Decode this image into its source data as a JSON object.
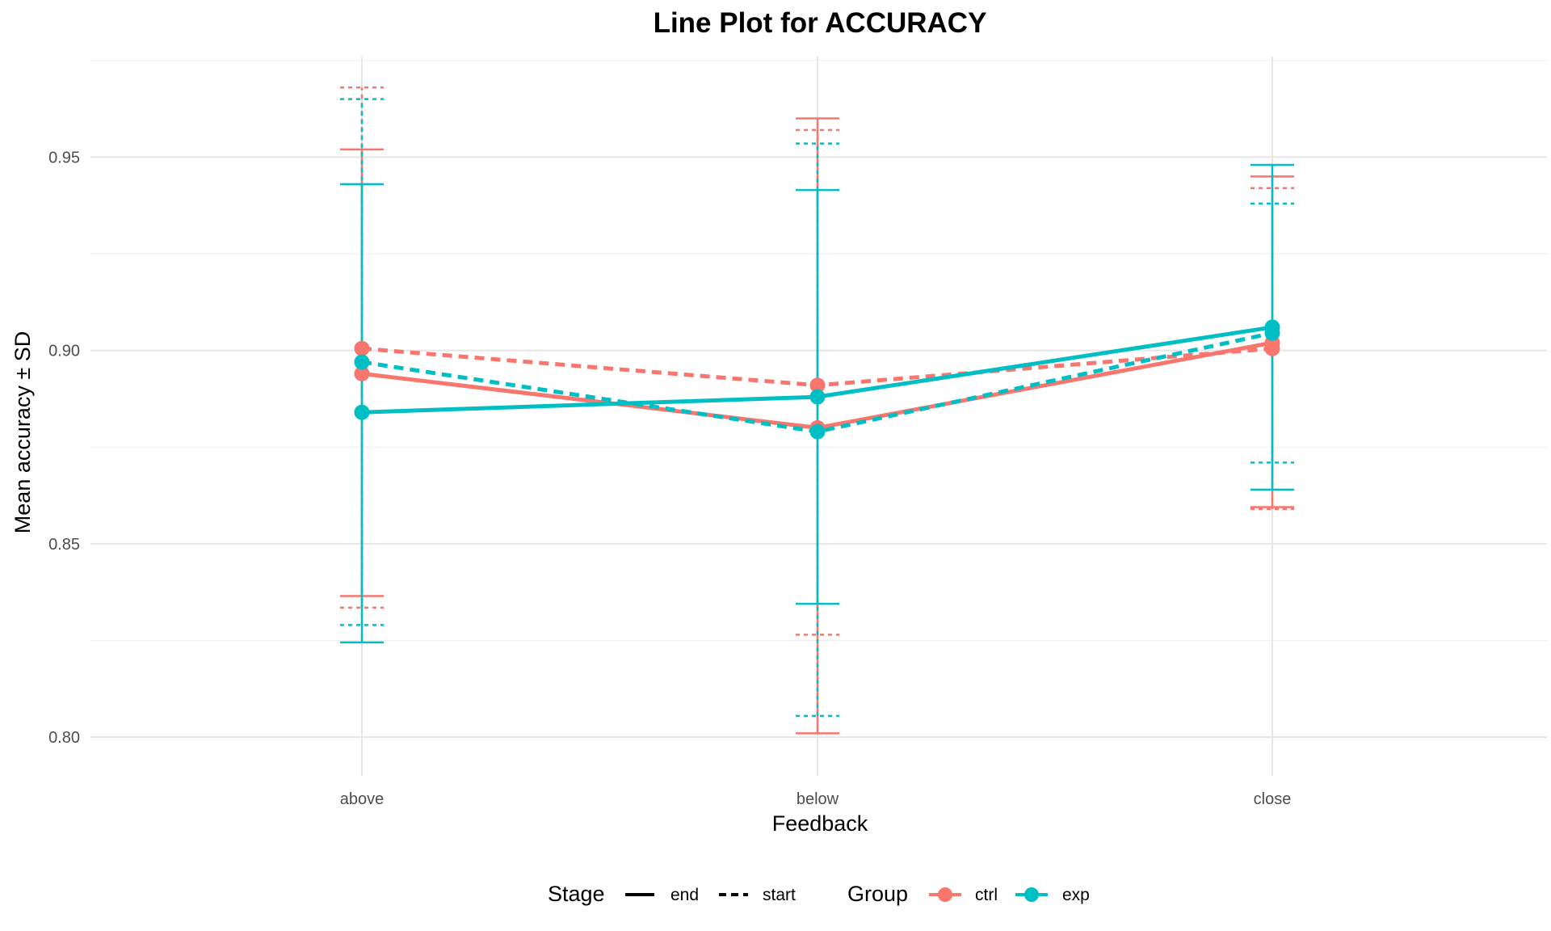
{
  "chart_data": {
    "type": "line",
    "title": "Line Plot for ACCURACY",
    "xlabel": "Feedback",
    "ylabel": "Mean accuracy ± SD",
    "categories": [
      "above",
      "below",
      "close"
    ],
    "ylim": [
      0.79,
      0.976
    ],
    "yticks": [
      0.8,
      0.85,
      0.9,
      0.95
    ],
    "ytick_labels": [
      "0.80",
      "0.85",
      "0.90",
      "0.95"
    ],
    "grid": true,
    "legend": {
      "position": "bottom",
      "stage_title": "Stage",
      "stage_entries": [
        {
          "label": "end",
          "linetype": "solid"
        },
        {
          "label": "start",
          "linetype": "dashed"
        }
      ],
      "group_title": "Group",
      "group_entries": [
        {
          "label": "ctrl",
          "color": "#F8766D"
        },
        {
          "label": "exp",
          "color": "#00BFC4"
        }
      ]
    },
    "series": [
      {
        "name": "ctrl end",
        "group": "ctrl",
        "stage": "end",
        "color": "#F8766D",
        "dash": false,
        "values": [
          0.894,
          0.88,
          0.902
        ],
        "sd_low": [
          0.8365,
          0.801,
          0.8595
        ],
        "sd_high": [
          0.952,
          0.96,
          0.945
        ]
      },
      {
        "name": "ctrl start",
        "group": "ctrl",
        "stage": "start",
        "color": "#F8766D",
        "dash": true,
        "values": [
          0.9005,
          0.891,
          0.9005
        ],
        "sd_low": [
          0.8335,
          0.8265,
          0.859
        ],
        "sd_high": [
          0.968,
          0.957,
          0.942
        ]
      },
      {
        "name": "exp end",
        "group": "exp",
        "stage": "end",
        "color": "#00BFC4",
        "dash": false,
        "values": [
          0.884,
          0.888,
          0.906
        ],
        "sd_low": [
          0.8245,
          0.8345,
          0.864
        ],
        "sd_high": [
          0.943,
          0.9415,
          0.948
        ]
      },
      {
        "name": "exp start",
        "group": "exp",
        "stage": "start",
        "color": "#00BFC4",
        "dash": true,
        "values": [
          0.897,
          0.879,
          0.9045
        ],
        "sd_low": [
          0.829,
          0.8055,
          0.871
        ],
        "sd_high": [
          0.965,
          0.9535,
          0.938
        ]
      }
    ]
  }
}
